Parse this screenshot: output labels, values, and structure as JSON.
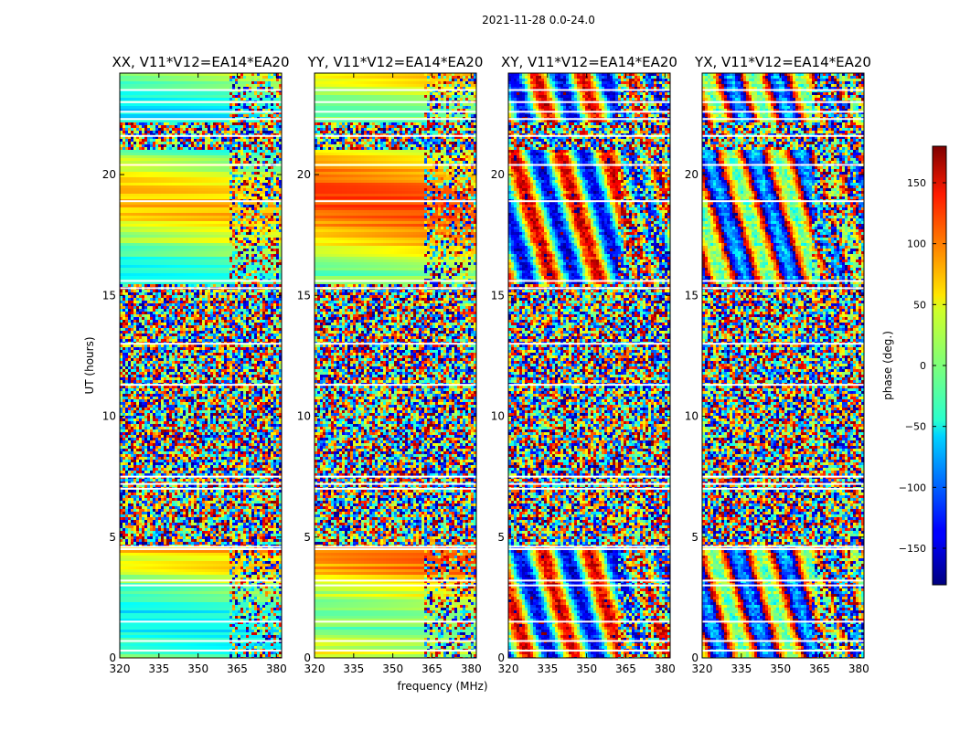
{
  "chart_data": {
    "type": "heatmap",
    "title": "2021-11-28 0.0-24.0",
    "xlabel": "frequency (MHz)",
    "ylabel": "UT (hours)",
    "xlim": [
      320,
      382
    ],
    "ylim": [
      0,
      24.2
    ],
    "x_ticks": [
      320,
      335,
      350,
      365,
      380
    ],
    "y_ticks": [
      0,
      5,
      10,
      15,
      20
    ],
    "colorbar": {
      "label": "phase (deg.)",
      "range": [
        -180,
        180
      ],
      "ticks": [
        150,
        100,
        50,
        0,
        -50,
        -100,
        -150
      ],
      "tick_labels": [
        "150",
        "100",
        "50",
        "0",
        "−50",
        "−100",
        "−150"
      ],
      "colormap": "jet"
    },
    "panels": [
      {
        "title": "XX, V11*V12=EA14*EA20",
        "pol": "XX",
        "pattern": "parallel",
        "base_offset": 10
      },
      {
        "title": "YY, V11*V12=EA14*EA20",
        "pol": "YY",
        "pattern": "parallel",
        "base_offset": 55
      },
      {
        "title": "XY, V11*V12=EA14*EA20",
        "pol": "XY",
        "pattern": "cross",
        "base_offset": 0
      },
      {
        "title": "YX, V11*V12=EA14*EA20",
        "pol": "YX",
        "pattern": "cross",
        "base_offset": 140
      }
    ],
    "noisy_intervals_ut": [
      [
        4.6,
        15.5
      ],
      [
        21.0,
        22.2
      ]
    ],
    "flagged_gaps_ut": [
      0.3,
      0.7,
      1.5,
      3.0,
      3.2,
      4.5,
      4.6,
      7.0,
      7.2,
      7.5,
      11.3,
      13.0,
      15.3,
      15.6,
      18.9,
      20.4,
      21.6,
      22.3,
      22.6,
      23.0,
      23.5
    ]
  }
}
